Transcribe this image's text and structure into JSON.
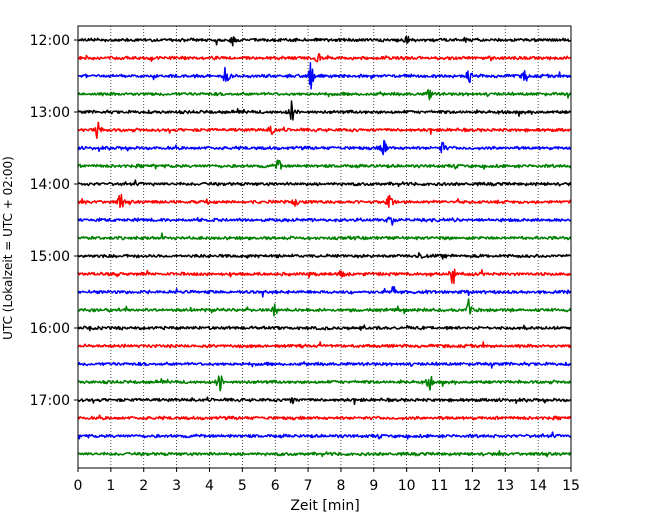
{
  "chart_data": {
    "type": "line",
    "xlabel": "Zeit  [min]",
    "ylabel": "UTC (Lokalzeit = UTC + 02:00)",
    "xlim": [
      0,
      15
    ],
    "x_ticks": [
      "0",
      "1",
      "2",
      "3",
      "4",
      "5",
      "6",
      "7",
      "8",
      "9",
      "10",
      "11",
      "12",
      "13",
      "14",
      "15"
    ],
    "y_tick_labels": [
      "12:00",
      "13:00",
      "14:00",
      "15:00",
      "16:00",
      "17:00"
    ],
    "grid": "vertical-dotted",
    "trace_colors": [
      "#000000",
      "#ff0000",
      "#0000ff",
      "#008000"
    ],
    "traces": [
      {
        "start": "12:00",
        "color": "#000000",
        "events": [
          [
            4.7,
            0.5
          ],
          [
            10.0,
            0.5
          ]
        ]
      },
      {
        "start": "12:15",
        "color": "#ff0000",
        "events": [
          [
            7.3,
            0.5
          ]
        ]
      },
      {
        "start": "12:30",
        "color": "#0000ff",
        "events": [
          [
            4.5,
            1.0
          ],
          [
            7.1,
            1.6
          ],
          [
            11.9,
            0.7
          ],
          [
            13.6,
            0.6
          ]
        ]
      },
      {
        "start": "12:45",
        "color": "#008000",
        "events": [
          [
            10.7,
            0.6
          ]
        ]
      },
      {
        "start": "13:00",
        "color": "#000000",
        "events": [
          [
            6.5,
            1.3
          ]
        ]
      },
      {
        "start": "13:15",
        "color": "#ff0000",
        "events": [
          [
            0.6,
            1.0
          ],
          [
            5.9,
            0.5
          ]
        ]
      },
      {
        "start": "13:30",
        "color": "#0000ff",
        "events": [
          [
            9.3,
            1.3
          ],
          [
            11.1,
            0.6
          ]
        ]
      },
      {
        "start": "13:45",
        "color": "#008000",
        "events": [
          [
            6.1,
            0.6
          ]
        ]
      },
      {
        "start": "14:00",
        "color": "#000000",
        "events": []
      },
      {
        "start": "14:15",
        "color": "#ff0000",
        "events": [
          [
            1.3,
            0.8
          ],
          [
            9.5,
            1.5
          ],
          [
            6.6,
            0.4
          ]
        ]
      },
      {
        "start": "14:30",
        "color": "#0000ff",
        "events": [
          [
            9.5,
            1.0
          ]
        ]
      },
      {
        "start": "14:45",
        "color": "#008000",
        "events": []
      },
      {
        "start": "15:00",
        "color": "#000000",
        "events": [
          [
            10.4,
            0.4
          ]
        ]
      },
      {
        "start": "15:15",
        "color": "#ff0000",
        "events": [
          [
            8.0,
            0.7
          ],
          [
            11.4,
            1.2
          ]
        ]
      },
      {
        "start": "15:30",
        "color": "#0000ff",
        "events": [
          [
            9.6,
            0.6
          ]
        ]
      },
      {
        "start": "15:45",
        "color": "#008000",
        "events": [
          [
            6.0,
            0.7
          ],
          [
            11.9,
            1.3
          ]
        ]
      },
      {
        "start": "16:00",
        "color": "#000000",
        "events": []
      },
      {
        "start": "16:15",
        "color": "#ff0000",
        "events": []
      },
      {
        "start": "16:30",
        "color": "#0000ff",
        "events": []
      },
      {
        "start": "16:45",
        "color": "#008000",
        "events": [
          [
            4.3,
            1.0
          ],
          [
            10.7,
            0.8
          ]
        ]
      },
      {
        "start": "17:00",
        "color": "#000000",
        "events": [
          [
            6.5,
            0.4
          ]
        ]
      },
      {
        "start": "17:15",
        "color": "#ff0000",
        "events": []
      },
      {
        "start": "17:30",
        "color": "#0000ff",
        "events": []
      },
      {
        "start": "17:45",
        "color": "#008000",
        "events": []
      }
    ]
  }
}
